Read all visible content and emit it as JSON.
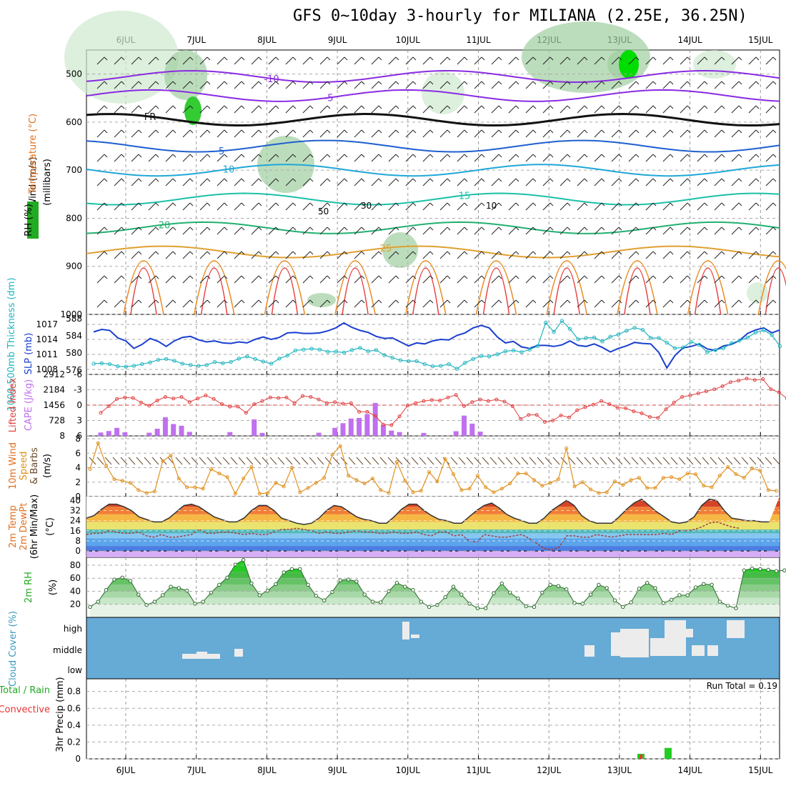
{
  "title": "GFS 0~10day 3-hourly for MILIANA (2.25E, 36.25N)",
  "days": [
    "6JUL",
    "7JUL",
    "8JUL",
    "9JUL",
    "10JUL",
    "11JUL",
    "12JUL",
    "13JUL",
    "14JUL",
    "15JUL"
  ],
  "colors": {
    "rh": "#22aa22",
    "temp_warm": "#e07020",
    "temp_cold": "#8a2be2",
    "slp": "#1a3fcf",
    "thickness": "#22b5c0",
    "lifted": "#e04040",
    "cape": "#c070ee",
    "wind": "#e0901c",
    "cloud_bg": "#66aad6",
    "cloud": "#ececec",
    "precip_rain": "#22cc22",
    "precip_conv": "#ee3333"
  },
  "chart_data": [
    {
      "type": "heatmap",
      "name": "upper-air cross-section",
      "ylabels": [
        "Wind (m/s)",
        "Temperature (°C)",
        "RH (%)",
        "(millibars)"
      ],
      "yticks": [
        500,
        600,
        700,
        800,
        900,
        1000
      ],
      "ylim": [
        1000,
        450
      ],
      "temperature_contours": [
        {
          "label": "-10"
        },
        {
          "label": "-5"
        },
        {
          "label": "FR"
        },
        {
          "label": "5"
        },
        {
          "label": "10"
        },
        {
          "label": "15"
        },
        {
          "label": "20"
        },
        {
          "label": "25"
        }
      ],
      "rh_contour_labels": [
        "50",
        "30",
        "10"
      ]
    },
    {
      "type": "line",
      "name": "slp-thickness",
      "ylabel_left": "1000-500mb Thickness (dm)",
      "ylabel_right": "SLP (mb)",
      "left_ticks": [
        576,
        580,
        584,
        588
      ],
      "right_ticks": [
        1008,
        1011,
        1014,
        1017
      ],
      "series": [
        {
          "name": "SLP",
          "values": [
            1015.5,
            1016,
            1015.8,
            1014.3,
            1013.7,
            1012.2,
            1013,
            1014.2,
            1013.6,
            1012.6,
            1013.7,
            1014.4,
            1014.6,
            1013.9,
            1013.5,
            1013.7,
            1013.3,
            1013.2,
            1013.5,
            1013.3,
            1014,
            1014.5,
            1014,
            1014.4,
            1015.3,
            1015.4,
            1015.2,
            1015.2,
            1015.3,
            1015.7,
            1016.3,
            1017.3,
            1016.4,
            1015.8,
            1015.4,
            1014.6,
            1014.2,
            1014.3,
            1013.5,
            1012.7,
            1013.3,
            1013.1,
            1013.7,
            1014,
            1013.9,
            1014.8,
            1015.3,
            1016.3,
            1016.8,
            1016.3,
            1014.5,
            1013.3,
            1013.6,
            1012.5,
            1012.2,
            1012.8,
            1012.8,
            1012.6,
            1012.9,
            1013.7,
            1012.8,
            1012.6,
            1013.1,
            1012.4,
            1011.5,
            1012.2,
            1012.7,
            1013.4,
            1013.2,
            1013.1,
            1011.4,
            1008.3,
            1010.8,
            1012.3,
            1012.6,
            1013.1,
            1012.1,
            1011.8,
            1012.7,
            1013,
            1013.8,
            1015.2,
            1015.9,
            1016.3,
            1015.3,
            1015.9
          ]
        },
        {
          "name": "Thickness",
          "values": [
            577.5,
            577.6,
            577.4,
            576.9,
            576.8,
            577,
            577.4,
            577.8,
            578.4,
            578.6,
            578.2,
            577.5,
            577.2,
            577,
            577.2,
            577.9,
            577.6,
            577.9,
            578.7,
            579.2,
            578.6,
            578,
            577.5,
            578.7,
            579.4,
            580.6,
            580.8,
            581,
            580.8,
            580.3,
            580.3,
            580.1,
            580.7,
            581.2,
            580.4,
            580.7,
            579.5,
            578.9,
            578.3,
            578.1,
            578.1,
            577.4,
            576.9,
            577,
            577.4,
            576.3,
            577.7,
            578.6,
            579.3,
            579.2,
            579.7,
            580.4,
            580.6,
            580.2,
            580.8,
            581.6,
            587.1,
            584.9,
            587.5,
            585.6,
            583.2,
            583.5,
            583.6,
            582.7,
            583.8,
            584.3,
            585.2,
            585.9,
            585.4,
            583.5,
            583.5,
            582.4,
            581.1,
            581.3,
            582.6,
            581.9,
            580.2,
            580.7,
            581.1,
            582.3,
            582.9,
            583.6,
            584.8,
            585.3,
            584.2,
            581.6
          ]
        }
      ]
    },
    {
      "type": "bar",
      "name": "lifted-cape",
      "ylabel_left": "Lifted Index",
      "ylabel_right": "CAPE (J/kg)",
      "left_ticks": [
        -6,
        -3,
        0,
        3,
        6
      ],
      "right_ticks": [
        8,
        728,
        1456,
        2184,
        2912
      ],
      "series": [
        {
          "name": "Lifted Index",
          "values": [
            1.5,
            0.2,
            -1.2,
            -1.5,
            -1.4,
            -0.5,
            0.1,
            -0.9,
            -1.6,
            -1.3,
            -1.6,
            -0.6,
            -1.3,
            -1.9,
            -1.2,
            -0.2,
            0.3,
            0.3,
            1.5,
            -0.2,
            -0.8,
            -1.5,
            -1.4,
            -1.5,
            -0.4,
            -1.8,
            -1.6,
            -1.1,
            -0.4,
            -0.6,
            -0.3,
            -0.4,
            1.3,
            1.3,
            2.1,
            3.8,
            3.9,
            2.2,
            0.1,
            -0.4,
            -0.8,
            -1,
            -0.9,
            -1.5,
            -2,
            0.2,
            -0.6,
            -1.1,
            -0.8,
            -1.1,
            -0.7,
            0.2,
            2.7,
            1.9,
            1.9,
            3.3,
            3,
            2,
            2.4,
            1,
            0.4,
            -0.1,
            -0.8,
            -0.2,
            0.5,
            0.6,
            1.2,
            1.6,
            2.3,
            2.5,
            0.8,
            -0.5,
            -1.6,
            -1.9,
            -2.3,
            -2.7,
            -3.1,
            -3.7,
            -4.5,
            -4.8,
            -5.2,
            -4.9,
            -5.1,
            -3.1,
            -2.5,
            -1.3
          ]
        },
        {
          "name": "CAPE",
          "values": [
            160,
            230,
            380,
            170,
            0,
            0,
            150,
            340,
            880,
            560,
            480,
            190,
            0,
            0,
            0,
            0,
            180,
            0,
            0,
            780,
            140,
            0,
            0,
            0,
            0,
            0,
            0,
            150,
            0,
            380,
            600,
            820,
            850,
            1030,
            1560,
            520,
            250,
            180,
            0,
            0,
            140,
            0,
            0,
            0,
            220,
            960,
            580,
            200,
            0,
            0,
            0,
            0,
            0,
            0,
            0,
            0,
            0,
            0,
            0,
            0,
            0,
            0,
            0,
            0,
            0,
            0,
            0,
            0,
            0,
            0,
            0,
            0,
            0,
            0,
            0,
            0,
            0,
            0,
            0,
            0,
            0,
            0,
            0,
            0,
            0,
            0
          ]
        }
      ]
    },
    {
      "type": "line",
      "name": "wind-10m",
      "ylabel": "10m Wind Speed & Barbs (m/s)",
      "yticks": [
        0,
        2,
        4,
        6,
        8
      ],
      "ylim": [
        0,
        8
      ],
      "values": [
        3.8,
        7.4,
        4.3,
        2.4,
        2.2,
        1.9,
        0.9,
        0.5,
        0.7,
        4.9,
        5.7,
        2.5,
        1.3,
        1.3,
        1.1,
        3.8,
        3.2,
        2.7,
        0.4,
        2.5,
        4.1,
        0.4,
        0.5,
        1.9,
        1.4,
        4,
        0.6,
        1.2,
        1.9,
        2.6,
        5.8,
        7,
        2.9,
        2.3,
        1.8,
        2.5,
        0.9,
        0.5,
        4.8,
        2.2,
        0.6,
        0.8,
        3.4,
        2.1,
        5.2,
        3.1,
        0.9,
        1.1,
        2.9,
        1.3,
        0.6,
        1.1,
        1.8,
        3.2,
        3.2,
        2.3,
        1.5,
        1.9,
        2.4,
        6.7,
        1.4,
        2,
        1,
        0.5,
        0.6,
        2.1,
        1.6,
        2.3,
        2.6,
        1.2,
        1.2,
        2.6,
        2.7,
        2.4,
        3.2,
        3.1,
        1.5,
        1.3,
        2.9,
        4.1,
        3.1,
        2.6,
        3.9,
        3.6,
        0.9,
        0.8
      ]
    },
    {
      "type": "area",
      "name": "temp-dewpt",
      "ylabel": "2m Temp 2m DewPt (6hr Min/Max) (°C)",
      "yticks": [
        0,
        8,
        16,
        24,
        32,
        40
      ],
      "ylim": [
        -5,
        43
      ],
      "series": [
        {
          "name": "2m Temp",
          "values": [
            26,
            28,
            33,
            37,
            37,
            35,
            32,
            27,
            25,
            23,
            23,
            26,
            31,
            36,
            37,
            35,
            31,
            27,
            25,
            23,
            23,
            26,
            32,
            36,
            36,
            32,
            26,
            24,
            22,
            21,
            22,
            26,
            32,
            36,
            35,
            31,
            27,
            25,
            24,
            22,
            22,
            27,
            33,
            37,
            37,
            32,
            28,
            25,
            24,
            22,
            22,
            27,
            32,
            36,
            38,
            34,
            29,
            26,
            24,
            22,
            22,
            26,
            32,
            36,
            40,
            36,
            28,
            24,
            22,
            22,
            22,
            27,
            33,
            38,
            41,
            36,
            31,
            27,
            23,
            22,
            23,
            27,
            36,
            41,
            40,
            32,
            26,
            25,
            24,
            24,
            23,
            23
          ]
        },
        {
          "name": "2m DewPt",
          "values": [
            13,
            14,
            14,
            16,
            15,
            14,
            14,
            15,
            12,
            11,
            13,
            11,
            11,
            12,
            13,
            17,
            14,
            14,
            15,
            15,
            14,
            13,
            14,
            13,
            13,
            15,
            17,
            17,
            18,
            17,
            16,
            14,
            15,
            14,
            14,
            15,
            16,
            15,
            15,
            14,
            14,
            15,
            14,
            14,
            15,
            13,
            12,
            15,
            15,
            12,
            13,
            8,
            7,
            13,
            12,
            11,
            11,
            12,
            13,
            10,
            6,
            2,
            1,
            3,
            12,
            12,
            11,
            11,
            13,
            12,
            11,
            12,
            13,
            13,
            13,
            13,
            13,
            14,
            13,
            16,
            16,
            17,
            19,
            22,
            23,
            21,
            19,
            18
          ]
        }
      ]
    },
    {
      "type": "area",
      "name": "rh-2m",
      "ylabel": "2m RH (%)",
      "yticks": [
        20,
        40,
        60,
        80
      ],
      "ylim": [
        0,
        92
      ],
      "values": [
        16,
        24,
        42,
        58,
        61,
        56,
        35,
        19,
        24,
        34,
        47,
        45,
        41,
        21,
        24,
        38,
        50,
        61,
        81,
        88,
        52,
        34,
        41,
        51,
        69,
        74,
        74,
        50,
        33,
        26,
        39,
        57,
        58,
        55,
        35,
        24,
        23,
        40,
        53,
        47,
        42,
        24,
        16,
        19,
        31,
        47,
        35,
        21,
        14,
        14,
        37,
        52,
        38,
        29,
        17,
        16,
        38,
        50,
        48,
        43,
        22,
        21,
        35,
        50,
        45,
        26,
        16,
        23,
        44,
        53,
        45,
        22,
        27,
        34,
        34,
        46,
        51,
        50,
        24,
        18,
        14,
        72,
        75,
        74,
        73,
        71,
        72
      ]
    },
    {
      "type": "bar",
      "name": "cloud-cover",
      "ylabel": "Cloud Cover (%)",
      "yticks": [
        "high",
        "middle",
        "low"
      ]
    },
    {
      "type": "bar",
      "name": "precip-3hr",
      "ylabel": "3hr Precip (mm)",
      "legend": [
        "Total / Rain",
        "Convective"
      ],
      "annotation": "Run Total = 0.19",
      "yticks": [
        0,
        0.2,
        0.4,
        0.6,
        0.8
      ],
      "ylim": [
        0,
        0.95
      ],
      "series": [
        {
          "name": "Total / Rain",
          "values": [
            0.06,
            0.13
          ]
        },
        {
          "name": "Convective",
          "values": [
            0.05,
            0
          ]
        }
      ],
      "times": [
        "13JUL",
        "14JUL"
      ]
    }
  ]
}
